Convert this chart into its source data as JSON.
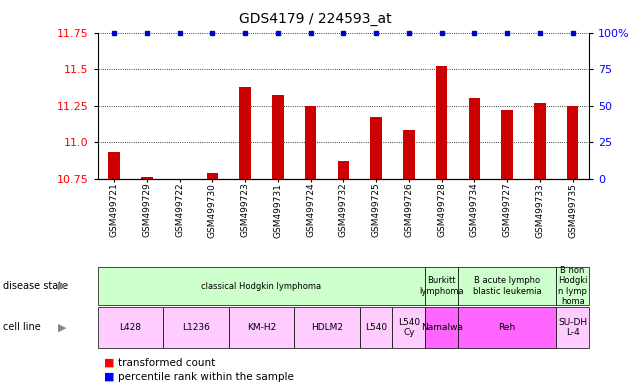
{
  "title": "GDS4179 / 224593_at",
  "samples": [
    "GSM499721",
    "GSM499729",
    "GSM499722",
    "GSM499730",
    "GSM499723",
    "GSM499731",
    "GSM499724",
    "GSM499732",
    "GSM499725",
    "GSM499726",
    "GSM499728",
    "GSM499734",
    "GSM499727",
    "GSM499733",
    "GSM499735"
  ],
  "bar_values": [
    10.93,
    10.76,
    10.72,
    10.79,
    11.38,
    11.32,
    11.25,
    10.87,
    11.17,
    11.08,
    11.52,
    11.3,
    11.22,
    11.27,
    11.25
  ],
  "percentile_values": [
    100,
    100,
    100,
    100,
    100,
    100,
    100,
    100,
    100,
    100,
    100,
    100,
    100,
    100,
    100
  ],
  "ylim": [
    10.75,
    11.75
  ],
  "yticks_left": [
    10.75,
    11.0,
    11.25,
    11.5,
    11.75
  ],
  "yticks_right": [
    0,
    25,
    50,
    75,
    100
  ],
  "bar_color": "#cc0000",
  "dot_color": "#0000cc",
  "disease_state_groups": [
    {
      "label": "classical Hodgkin lymphoma",
      "start": 0,
      "end": 9,
      "color": "#ccffcc"
    },
    {
      "label": "Burkitt\nlymphoma",
      "start": 10,
      "end": 10,
      "color": "#ccffcc"
    },
    {
      "label": "B acute lympho\nblastic leukemia",
      "start": 11,
      "end": 13,
      "color": "#ccffcc"
    },
    {
      "label": "B non\nHodgki\nn lymp\nhoma",
      "start": 14,
      "end": 14,
      "color": "#ccffcc"
    }
  ],
  "cell_line_groups": [
    {
      "label": "L428",
      "start": 0,
      "end": 1,
      "color": "#ffccff"
    },
    {
      "label": "L1236",
      "start": 2,
      "end": 3,
      "color": "#ffccff"
    },
    {
      "label": "KM-H2",
      "start": 4,
      "end": 5,
      "color": "#ffccff"
    },
    {
      "label": "HDLM2",
      "start": 6,
      "end": 7,
      "color": "#ffccff"
    },
    {
      "label": "L540",
      "start": 8,
      "end": 8,
      "color": "#ffccff"
    },
    {
      "label": "L540\nCy",
      "start": 9,
      "end": 9,
      "color": "#ffccff"
    },
    {
      "label": "Namalwa",
      "start": 10,
      "end": 10,
      "color": "#ff66ff"
    },
    {
      "label": "Reh",
      "start": 11,
      "end": 13,
      "color": "#ff66ff"
    },
    {
      "label": "SU-DH\nL-4",
      "start": 14,
      "end": 14,
      "color": "#ffccff"
    }
  ],
  "legend_items": [
    {
      "label": "transformed count",
      "color": "#cc0000"
    },
    {
      "label": "percentile rank within the sample",
      "color": "#0000cc"
    }
  ]
}
